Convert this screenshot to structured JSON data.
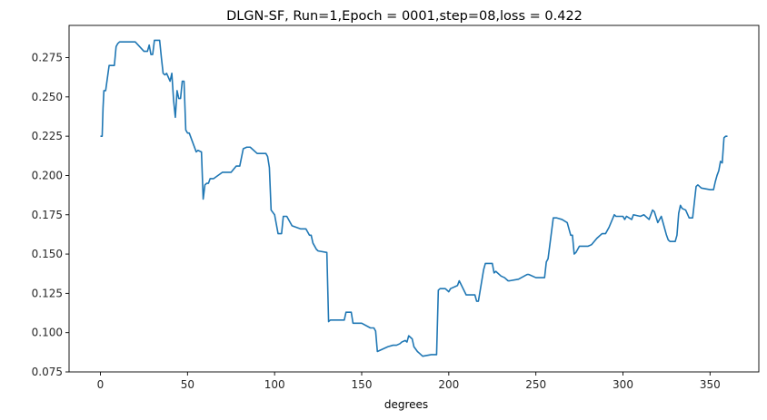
{
  "chart_data": {
    "type": "line",
    "title": "DLGN-SF, Run=1,Epoch = 0001,step=08,loss = 0.422",
    "xlabel": "degrees",
    "ylabel": "",
    "xlim": [
      -18,
      378
    ],
    "ylim": [
      0.075,
      0.2955
    ],
    "xticks": [
      0,
      50,
      100,
      150,
      200,
      250,
      300,
      350
    ],
    "yticks": [
      0.075,
      0.1,
      0.125,
      0.15,
      0.175,
      0.2,
      0.225,
      0.25,
      0.275
    ],
    "xtick_labels": [
      "0",
      "50",
      "100",
      "150",
      "200",
      "250",
      "300",
      "350"
    ],
    "ytick_labels": [
      "0.075",
      "0.100",
      "0.125",
      "0.150",
      "0.175",
      "0.200",
      "0.225",
      "0.250",
      "0.275"
    ],
    "grid": false,
    "legend": "none",
    "line_color": "#1f77b4",
    "series": [
      {
        "x": [
          0,
          1,
          1.5,
          2,
          3,
          4,
          5,
          6,
          8,
          9,
          10,
          11,
          13,
          15,
          20,
          25,
          26,
          27,
          28,
          29,
          30,
          31,
          32,
          34,
          35,
          36,
          37,
          38,
          40,
          41,
          42,
          43,
          44,
          45,
          46,
          47,
          48,
          49,
          50,
          51,
          55,
          56,
          58,
          59,
          60,
          61,
          62,
          63,
          65,
          70,
          75,
          78,
          80,
          82,
          84,
          86,
          90,
          95,
          96,
          97,
          98,
          100,
          102,
          104,
          105,
          107,
          110,
          115,
          118,
          120,
          121,
          122,
          124,
          125,
          130,
          131,
          132,
          135,
          140,
          141,
          144,
          145,
          150,
          155,
          156,
          157,
          158,
          159,
          165,
          168,
          170,
          172,
          173,
          175,
          176,
          177,
          178,
          179,
          180,
          182,
          183,
          185,
          190,
          193,
          194,
          195,
          198,
          200,
          201,
          205,
          206,
          210,
          215,
          216,
          217,
          220,
          221,
          223,
          225,
          226,
          227,
          230,
          232,
          234,
          235,
          240,
          245,
          246,
          250,
          255,
          256,
          257,
          260,
          262,
          265,
          268,
          270,
          271,
          272,
          273,
          275,
          280,
          282,
          285,
          288,
          290,
          292,
          295,
          296,
          300,
          301,
          302,
          305,
          306,
          310,
          312,
          315,
          317,
          318,
          320,
          322,
          325,
          326,
          327,
          328,
          330,
          331,
          332,
          333,
          334,
          336,
          338,
          340,
          342,
          343,
          345,
          350,
          351,
          352,
          353,
          354,
          355,
          356,
          357,
          358,
          359,
          360
        ],
        "y": [
          0.225,
          0.225,
          0.243,
          0.254,
          0.254,
          0.262,
          0.27,
          0.27,
          0.27,
          0.282,
          0.284,
          0.285,
          0.285,
          0.285,
          0.285,
          0.279,
          0.279,
          0.279,
          0.283,
          0.277,
          0.277,
          0.286,
          0.286,
          0.286,
          0.275,
          0.265,
          0.264,
          0.265,
          0.26,
          0.265,
          0.248,
          0.237,
          0.254,
          0.249,
          0.249,
          0.26,
          0.26,
          0.229,
          0.227,
          0.227,
          0.215,
          0.216,
          0.215,
          0.185,
          0.194,
          0.195,
          0.195,
          0.198,
          0.198,
          0.202,
          0.202,
          0.206,
          0.206,
          0.217,
          0.218,
          0.218,
          0.214,
          0.214,
          0.212,
          0.205,
          0.178,
          0.175,
          0.163,
          0.163,
          0.174,
          0.174,
          0.168,
          0.166,
          0.166,
          0.162,
          0.162,
          0.157,
          0.153,
          0.152,
          0.151,
          0.107,
          0.108,
          0.108,
          0.108,
          0.113,
          0.113,
          0.106,
          0.106,
          0.103,
          0.103,
          0.103,
          0.101,
          0.088,
          0.091,
          0.092,
          0.092,
          0.093,
          0.094,
          0.095,
          0.094,
          0.098,
          0.097,
          0.096,
          0.091,
          0.088,
          0.087,
          0.085,
          0.086,
          0.086,
          0.127,
          0.128,
          0.128,
          0.126,
          0.128,
          0.13,
          0.133,
          0.124,
          0.124,
          0.12,
          0.12,
          0.14,
          0.144,
          0.144,
          0.144,
          0.138,
          0.139,
          0.136,
          0.135,
          0.133,
          0.133,
          0.134,
          0.137,
          0.137,
          0.135,
          0.135,
          0.145,
          0.147,
          0.173,
          0.173,
          0.172,
          0.17,
          0.162,
          0.162,
          0.15,
          0.151,
          0.155,
          0.155,
          0.156,
          0.16,
          0.163,
          0.163,
          0.167,
          0.175,
          0.174,
          0.174,
          0.172,
          0.174,
          0.172,
          0.175,
          0.174,
          0.175,
          0.172,
          0.178,
          0.177,
          0.17,
          0.174,
          0.162,
          0.159,
          0.158,
          0.158,
          0.158,
          0.162,
          0.176,
          0.181,
          0.179,
          0.178,
          0.173,
          0.173,
          0.193,
          0.194,
          0.192,
          0.191,
          0.191,
          0.191,
          0.196,
          0.2,
          0.203,
          0.209,
          0.208,
          0.224,
          0.225,
          0.225
        ]
      }
    ]
  }
}
